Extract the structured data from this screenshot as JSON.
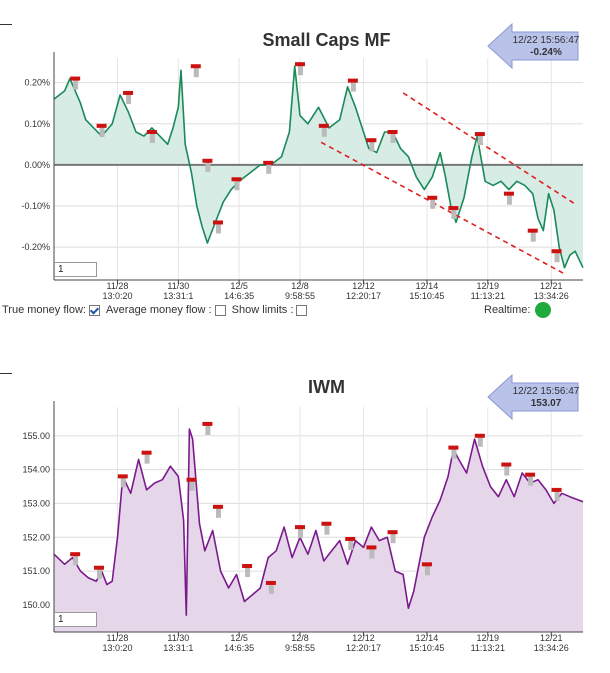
{
  "charts": [
    {
      "title": "Small Caps MF",
      "badge": {
        "time": "12/22 15:56:47",
        "value": "-0.24%"
      },
      "period_value": "1",
      "color": "#1a8a5a",
      "fill": "#d6ece4",
      "zero_line": true
    },
    {
      "title": "IWM",
      "badge": {
        "time": "12/22 15:56:47",
        "value": "153.07"
      },
      "period_value": "1",
      "color": "#7a1a8c",
      "fill": "#e6d6ea",
      "zero_line": false
    }
  ],
  "controls": {
    "true_mf_label": "True money flow:",
    "avg_mf_label": "Average money flow :",
    "limits_label": "Show limits :",
    "realtime_label": "Realtime:",
    "true_mf_checked": true,
    "avg_mf_checked": false,
    "limits_checked": false,
    "realtime_color": "#1eaa3c"
  },
  "chart_data": [
    {
      "type": "line",
      "title": "Small Caps MF",
      "y_tick_labels": [
        "0.20%",
        "0.10%",
        "0.00%",
        "-0.10%",
        "-0.20%"
      ],
      "y_ticks": [
        0.2,
        0.1,
        0.0,
        -0.1,
        -0.2
      ],
      "ylim": [
        -0.28,
        0.26
      ],
      "x_tick_labels": [
        [
          "11/28",
          "13:0:20"
        ],
        [
          "11/30",
          "13:31:1"
        ],
        [
          "12/5",
          "14:6:35"
        ],
        [
          "12/8",
          "9:58:55"
        ],
        [
          "12/12",
          "12:20:17"
        ],
        [
          "12/14",
          "15:10:45"
        ],
        [
          "12/19",
          "11:13:21"
        ],
        [
          "12/21",
          "13:34:26"
        ]
      ],
      "x_tick_positions": [
        0.12,
        0.235,
        0.35,
        0.465,
        0.585,
        0.705,
        0.82,
        0.94
      ],
      "series_points": [
        [
          0.0,
          0.16
        ],
        [
          0.02,
          0.18
        ],
        [
          0.03,
          0.21
        ],
        [
          0.05,
          0.15
        ],
        [
          0.06,
          0.11
        ],
        [
          0.075,
          0.09
        ],
        [
          0.09,
          0.07
        ],
        [
          0.11,
          0.1
        ],
        [
          0.125,
          0.17
        ],
        [
          0.14,
          0.13
        ],
        [
          0.155,
          0.08
        ],
        [
          0.17,
          0.07
        ],
        [
          0.185,
          0.09
        ],
        [
          0.2,
          0.07
        ],
        [
          0.215,
          0.05
        ],
        [
          0.225,
          0.09
        ],
        [
          0.235,
          0.14
        ],
        [
          0.24,
          0.23
        ],
        [
          0.248,
          0.05
        ],
        [
          0.26,
          -0.02
        ],
        [
          0.27,
          -0.1
        ],
        [
          0.28,
          -0.15
        ],
        [
          0.29,
          -0.19
        ],
        [
          0.305,
          -0.14
        ],
        [
          0.32,
          -0.09
        ],
        [
          0.335,
          -0.06
        ],
        [
          0.35,
          -0.04
        ],
        [
          0.37,
          -0.02
        ],
        [
          0.39,
          0.0
        ],
        [
          0.41,
          0.0
        ],
        [
          0.43,
          0.02
        ],
        [
          0.445,
          0.08
        ],
        [
          0.455,
          0.24
        ],
        [
          0.465,
          0.12
        ],
        [
          0.48,
          0.1
        ],
        [
          0.5,
          0.14
        ],
        [
          0.52,
          0.09
        ],
        [
          0.54,
          0.11
        ],
        [
          0.555,
          0.19
        ],
        [
          0.57,
          0.14
        ],
        [
          0.585,
          0.08
        ],
        [
          0.595,
          0.04
        ],
        [
          0.61,
          0.03
        ],
        [
          0.625,
          0.08
        ],
        [
          0.64,
          0.08
        ],
        [
          0.655,
          0.04
        ],
        [
          0.67,
          0.02
        ],
        [
          0.685,
          -0.03
        ],
        [
          0.7,
          -0.06
        ],
        [
          0.715,
          -0.03
        ],
        [
          0.73,
          0.03
        ],
        [
          0.74,
          -0.03
        ],
        [
          0.75,
          -0.1
        ],
        [
          0.76,
          -0.14
        ],
        [
          0.775,
          -0.08
        ],
        [
          0.79,
          0.02
        ],
        [
          0.8,
          0.07
        ],
        [
          0.815,
          -0.04
        ],
        [
          0.83,
          -0.05
        ],
        [
          0.845,
          -0.04
        ],
        [
          0.86,
          -0.06
        ],
        [
          0.875,
          -0.04
        ],
        [
          0.89,
          -0.05
        ],
        [
          0.905,
          -0.07
        ],
        [
          0.915,
          -0.13
        ],
        [
          0.925,
          -0.16
        ],
        [
          0.935,
          -0.07
        ],
        [
          0.945,
          -0.11
        ],
        [
          0.955,
          -0.2
        ],
        [
          0.965,
          -0.25
        ],
        [
          0.975,
          -0.22
        ],
        [
          0.985,
          -0.21
        ],
        [
          1.0,
          -0.25
        ]
      ],
      "markers": [
        [
          0.04,
          0.21
        ],
        [
          0.09,
          0.095
        ],
        [
          0.14,
          0.175
        ],
        [
          0.185,
          0.08
        ],
        [
          0.268,
          0.24
        ],
        [
          0.29,
          0.01
        ],
        [
          0.31,
          -0.14
        ],
        [
          0.345,
          -0.035
        ],
        [
          0.405,
          0.005
        ],
        [
          0.465,
          0.245
        ],
        [
          0.51,
          0.095
        ],
        [
          0.565,
          0.205
        ],
        [
          0.6,
          0.06
        ],
        [
          0.64,
          0.08
        ],
        [
          0.715,
          -0.08
        ],
        [
          0.755,
          -0.105
        ],
        [
          0.805,
          0.075
        ],
        [
          0.86,
          -0.07
        ],
        [
          0.905,
          -0.16
        ],
        [
          0.95,
          -0.21
        ]
      ],
      "trend_lines": [
        [
          [
            0.66,
            0.175
          ],
          [
            0.985,
            -0.095
          ]
        ],
        [
          [
            0.505,
            0.055
          ],
          [
            0.965,
            -0.265
          ]
        ]
      ]
    },
    {
      "type": "line",
      "title": "IWM",
      "y_tick_labels": [
        "155.00",
        "154.00",
        "153.00",
        "152.00",
        "151.00",
        "150.00"
      ],
      "y_ticks": [
        155,
        154,
        153,
        152,
        151,
        150
      ],
      "ylim": [
        149.2,
        155.85
      ],
      "x_tick_labels": [
        [
          "11/28",
          "13:0:20"
        ],
        [
          "11/30",
          "13:31:1"
        ],
        [
          "12/5",
          "14:6:35"
        ],
        [
          "12/8",
          "9:58:55"
        ],
        [
          "12/12",
          "12:20:17"
        ],
        [
          "12/14",
          "15:10:45"
        ],
        [
          "12/19",
          "11:13:21"
        ],
        [
          "12/21",
          "13:34:26"
        ]
      ],
      "x_tick_positions": [
        0.12,
        0.235,
        0.35,
        0.465,
        0.585,
        0.705,
        0.82,
        0.94
      ],
      "series_points": [
        [
          0.0,
          151.5
        ],
        [
          0.02,
          151.2
        ],
        [
          0.035,
          151.4
        ],
        [
          0.05,
          151.0
        ],
        [
          0.065,
          150.8
        ],
        [
          0.08,
          150.7
        ],
        [
          0.09,
          151.0
        ],
        [
          0.1,
          150.6
        ],
        [
          0.11,
          150.7
        ],
        [
          0.12,
          152.0
        ],
        [
          0.13,
          153.8
        ],
        [
          0.145,
          153.3
        ],
        [
          0.16,
          154.3
        ],
        [
          0.175,
          153.4
        ],
        [
          0.19,
          153.6
        ],
        [
          0.205,
          153.7
        ],
        [
          0.22,
          154.1
        ],
        [
          0.235,
          153.8
        ],
        [
          0.245,
          152.5
        ],
        [
          0.25,
          149.7
        ],
        [
          0.256,
          155.2
        ],
        [
          0.262,
          154.9
        ],
        [
          0.275,
          152.4
        ],
        [
          0.285,
          151.6
        ],
        [
          0.3,
          152.2
        ],
        [
          0.315,
          151.0
        ],
        [
          0.33,
          150.5
        ],
        [
          0.345,
          150.9
        ],
        [
          0.36,
          150.1
        ],
        [
          0.375,
          150.3
        ],
        [
          0.39,
          150.5
        ],
        [
          0.405,
          151.4
        ],
        [
          0.42,
          151.6
        ],
        [
          0.435,
          152.3
        ],
        [
          0.45,
          151.4
        ],
        [
          0.465,
          152.0
        ],
        [
          0.48,
          151.5
        ],
        [
          0.495,
          152.2
        ],
        [
          0.51,
          151.3
        ],
        [
          0.525,
          151.6
        ],
        [
          0.54,
          151.9
        ],
        [
          0.555,
          151.2
        ],
        [
          0.57,
          151.9
        ],
        [
          0.585,
          151.7
        ],
        [
          0.6,
          152.3
        ],
        [
          0.615,
          151.9
        ],
        [
          0.63,
          152.0
        ],
        [
          0.645,
          151.0
        ],
        [
          0.66,
          150.9
        ],
        [
          0.67,
          149.9
        ],
        [
          0.68,
          150.4
        ],
        [
          0.69,
          151.2
        ],
        [
          0.7,
          152.0
        ],
        [
          0.715,
          152.6
        ],
        [
          0.73,
          153.1
        ],
        [
          0.745,
          153.8
        ],
        [
          0.755,
          154.6
        ],
        [
          0.765,
          154.3
        ],
        [
          0.78,
          153.9
        ],
        [
          0.795,
          154.9
        ],
        [
          0.81,
          154.1
        ],
        [
          0.825,
          153.5
        ],
        [
          0.84,
          153.2
        ],
        [
          0.855,
          153.7
        ],
        [
          0.87,
          153.2
        ],
        [
          0.885,
          153.9
        ],
        [
          0.9,
          153.6
        ],
        [
          0.915,
          153.7
        ],
        [
          0.93,
          153.4
        ],
        [
          0.945,
          153.0
        ],
        [
          0.96,
          153.3
        ],
        [
          0.975,
          153.2
        ],
        [
          1.0,
          153.05
        ]
      ],
      "markers": [
        [
          0.04,
          151.5
        ],
        [
          0.085,
          151.1
        ],
        [
          0.13,
          153.8
        ],
        [
          0.175,
          154.5
        ],
        [
          0.26,
          153.7
        ],
        [
          0.29,
          155.35
        ],
        [
          0.31,
          152.9
        ],
        [
          0.365,
          151.15
        ],
        [
          0.41,
          150.65
        ],
        [
          0.465,
          152.3
        ],
        [
          0.515,
          152.4
        ],
        [
          0.56,
          151.95
        ],
        [
          0.6,
          151.7
        ],
        [
          0.64,
          152.15
        ],
        [
          0.705,
          151.2
        ],
        [
          0.755,
          154.65
        ],
        [
          0.805,
          155.0
        ],
        [
          0.855,
          154.15
        ],
        [
          0.9,
          153.85
        ],
        [
          0.95,
          153.4
        ]
      ]
    }
  ]
}
